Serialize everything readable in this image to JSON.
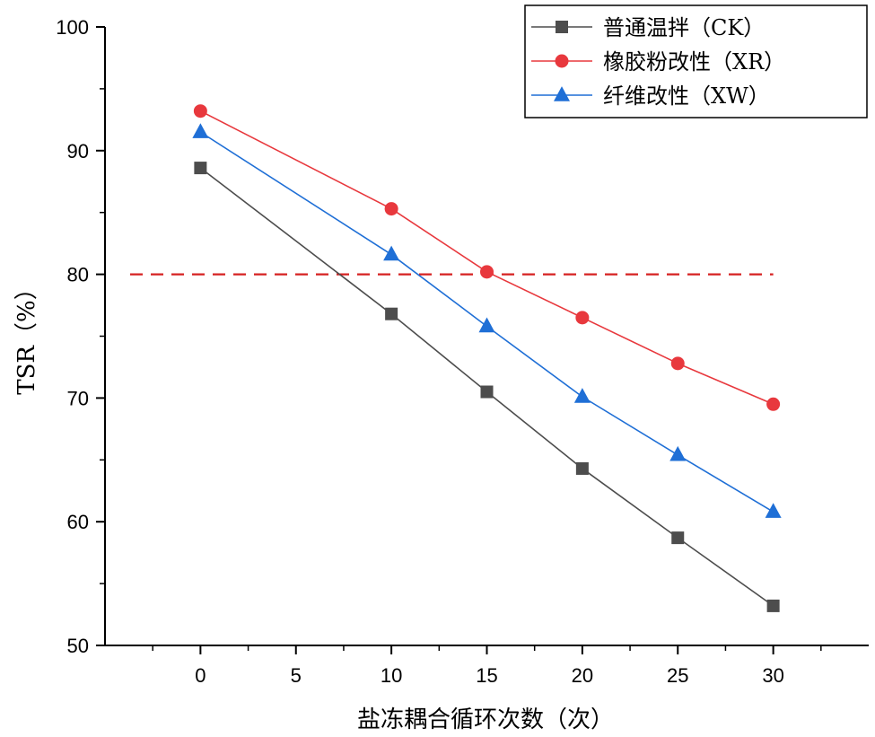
{
  "chart_data": {
    "type": "line",
    "title": "",
    "xlabel": "盐冻耦合循环次数（次）",
    "ylabel": "TSR（%）",
    "xlim": [
      -5,
      35
    ],
    "ylim": [
      50,
      100
    ],
    "xticks": [
      0,
      5,
      10,
      15,
      20,
      25,
      30
    ],
    "xtick_labels": [
      "0",
      "5",
      "10",
      "15",
      "20",
      "25",
      "30"
    ],
    "yticks": [
      50,
      60,
      70,
      80,
      90,
      100
    ],
    "ytick_labels": [
      "50",
      "60",
      "70",
      "80",
      "90",
      "100"
    ],
    "x": [
      0,
      10,
      15,
      20,
      25,
      30
    ],
    "series": [
      {
        "name": "普通温拌（CK）",
        "values": [
          88.6,
          76.8,
          70.5,
          64.3,
          58.7,
          53.2
        ],
        "color": "#4d4d4d",
        "marker": "square"
      },
      {
        "name": "橡胶粉改性（XR）",
        "values": [
          93.2,
          85.3,
          80.2,
          76.5,
          72.8,
          69.5
        ],
        "color": "#e8383d",
        "marker": "circle"
      },
      {
        "name": "纤维改性（XW）",
        "values": [
          91.5,
          81.6,
          75.8,
          70.1,
          65.4,
          60.8
        ],
        "color": "#1f6fd6",
        "marker": "triangle"
      }
    ],
    "reference_line": {
      "y": 80,
      "color": "#d62020",
      "style": "dashed",
      "x_from": -5,
      "x_to": 30
    },
    "legend_position": "top-right",
    "grid": false
  }
}
